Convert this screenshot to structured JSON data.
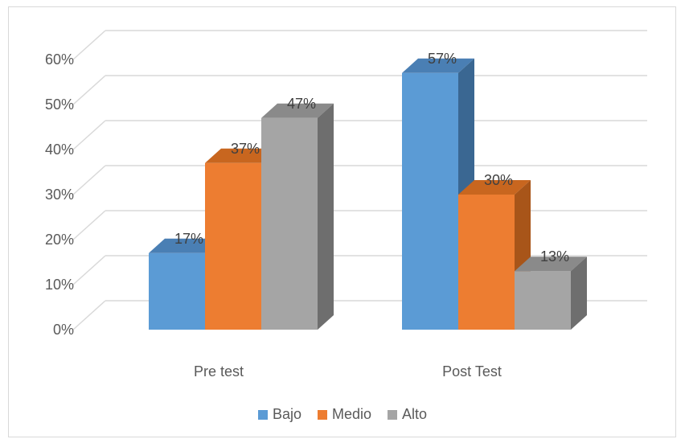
{
  "chart_data": {
    "type": "bar",
    "categories": [
      "Pre test",
      "Post Test"
    ],
    "series": [
      {
        "name": "Bajo",
        "values": [
          17,
          57
        ],
        "color": "#5b9bd5",
        "side_color": "#3a6792",
        "top_color": "#4a7fb4"
      },
      {
        "name": "Medio",
        "values": [
          37,
          30
        ],
        "color": "#ed7d31",
        "side_color": "#a85519",
        "top_color": "#c8661f"
      },
      {
        "name": "Alto",
        "values": [
          47,
          13
        ],
        "color": "#a5a5a5",
        "side_color": "#6e6e6e",
        "top_color": "#8a8a8a"
      }
    ],
    "data_labels": [
      [
        "17%",
        "57%"
      ],
      [
        "37%",
        "30%"
      ],
      [
        "47%",
        "13%"
      ]
    ],
    "y_ticks": [
      "0%",
      "10%",
      "20%",
      "30%",
      "40%",
      "50%",
      "60%"
    ],
    "ylim": [
      0,
      60
    ],
    "grid": true,
    "legend_position": "bottom",
    "style": "3d-clustered-column"
  }
}
